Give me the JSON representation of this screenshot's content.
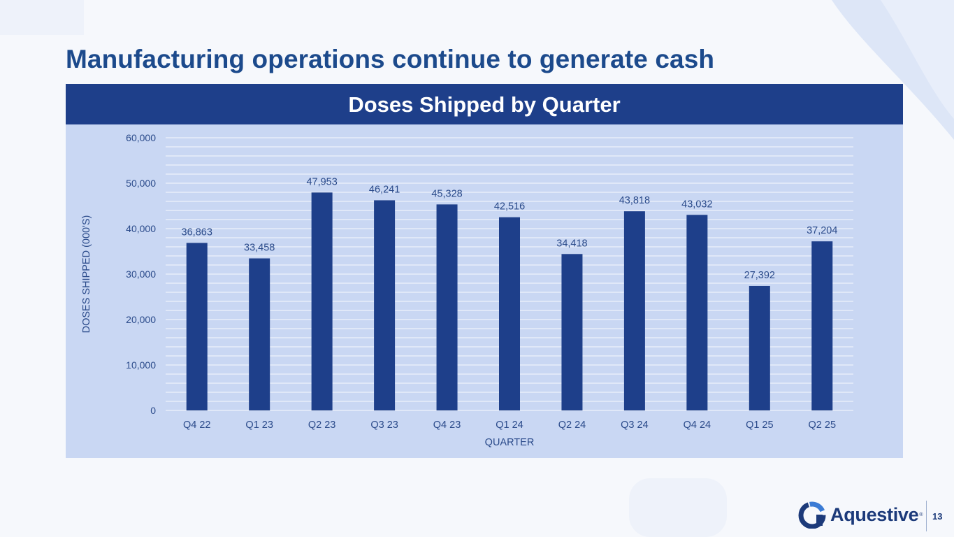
{
  "slide": {
    "title": "Manufacturing operations continue to generate cash",
    "page_number": "13"
  },
  "brand": {
    "name": "Aquestive",
    "registered_mark": "®",
    "logo_icon": "aquestive-logo-icon"
  },
  "colors": {
    "title": "#1c4a8c",
    "header_bg": "#1e3f8a",
    "panel_bg": "#c9d7f3",
    "bar": "#1e3f8a",
    "label": "#2a4a8a"
  },
  "chart_data": {
    "type": "bar",
    "title": "Doses Shipped by Quarter",
    "xlabel": "QUARTER",
    "ylabel": "DOSES SHIPPED (000'S)",
    "ylim": [
      0,
      60000
    ],
    "y_ticks": [
      0,
      10000,
      20000,
      30000,
      40000,
      50000,
      60000
    ],
    "y_tick_labels": [
      "0",
      "10,000",
      "20,000",
      "30,000",
      "40,000",
      "50,000",
      "60,000"
    ],
    "grid": true,
    "legend": "none",
    "categories": [
      "Q4 22",
      "Q1 23",
      "Q2 23",
      "Q3 23",
      "Q4 23",
      "Q1 24",
      "Q2 24",
      "Q3 24",
      "Q4 24",
      "Q1 25",
      "Q2 25"
    ],
    "values": [
      36863,
      33458,
      47953,
      46241,
      45328,
      42516,
      34418,
      43818,
      43032,
      27392,
      37204
    ],
    "value_labels": [
      "36,863",
      "33,458",
      "47,953",
      "46,241",
      "45,328",
      "42,516",
      "34,418",
      "43,818",
      "43,032",
      "27,392",
      "37,204"
    ]
  }
}
